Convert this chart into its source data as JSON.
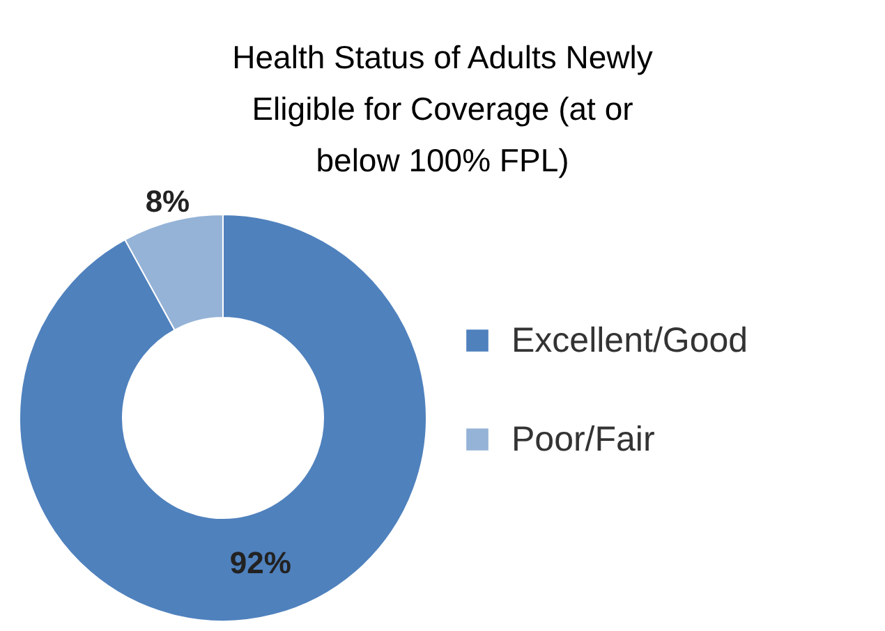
{
  "chart_data": {
    "type": "donut",
    "title": "Health Status of Adults Newly Eligible for Coverage (at or below 100% FPL)",
    "categories": [
      "Excellent/Good",
      "Poor/Fair"
    ],
    "values": [
      92,
      8
    ],
    "colors": [
      "#4f81bd",
      "#95b3d7"
    ],
    "value_labels": [
      "92%",
      "8%"
    ],
    "legend": "right"
  }
}
